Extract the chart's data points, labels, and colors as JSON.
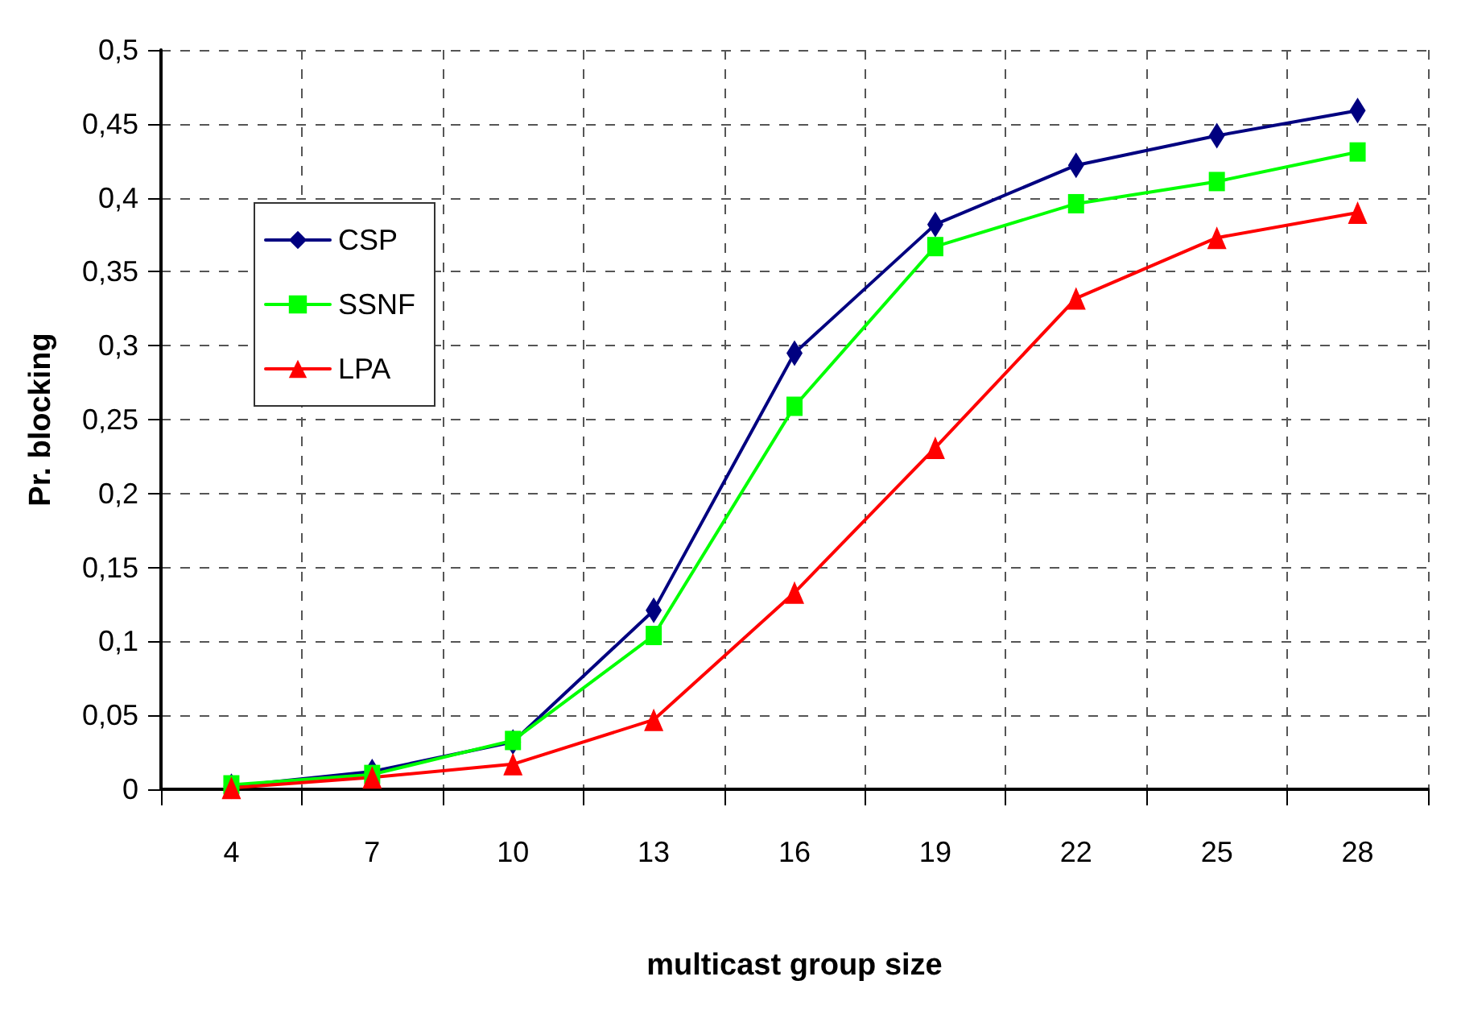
{
  "chart_data": {
    "type": "line",
    "xlabel": "multicast group size",
    "ylabel": "Pr. blocking",
    "categories": [
      "4",
      "7",
      "10",
      "13",
      "16",
      "19",
      "22",
      "25",
      "28"
    ],
    "series": [
      {
        "name": "CSP",
        "color": "#000080",
        "marker": "diamond",
        "values": [
          0.002,
          0.012,
          0.032,
          0.121,
          0.295,
          0.382,
          0.422,
          0.442,
          0.459
        ]
      },
      {
        "name": "SSNF",
        "color": "#00ff00",
        "marker": "square",
        "values": [
          0.003,
          0.01,
          0.033,
          0.104,
          0.259,
          0.367,
          0.396,
          0.411,
          0.431
        ]
      },
      {
        "name": "LPA",
        "color": "#ff0000",
        "marker": "triangle",
        "values": [
          0.001,
          0.008,
          0.017,
          0.047,
          0.133,
          0.231,
          0.332,
          0.373,
          0.39
        ]
      }
    ],
    "ylim": [
      0,
      0.5
    ],
    "yticks": [
      0,
      {
        "value": 0.05,
        "label": "0,05"
      },
      {
        "value": 0.1,
        "label": "0,1"
      },
      {
        "value": 0.15,
        "label": "0,15"
      },
      {
        "value": 0.2,
        "label": "0,2"
      },
      {
        "value": 0.25,
        "label": "0,25"
      },
      {
        "value": 0.3,
        "label": "0,3"
      },
      {
        "value": 0.35,
        "label": "0,35"
      },
      {
        "value": 0.4,
        "label": "0,4"
      },
      {
        "value": 0.45,
        "label": "0,45"
      },
      {
        "value": 0.5,
        "label": "0,5"
      }
    ],
    "grid": true,
    "legend": "left",
    "line_style": "solid"
  }
}
